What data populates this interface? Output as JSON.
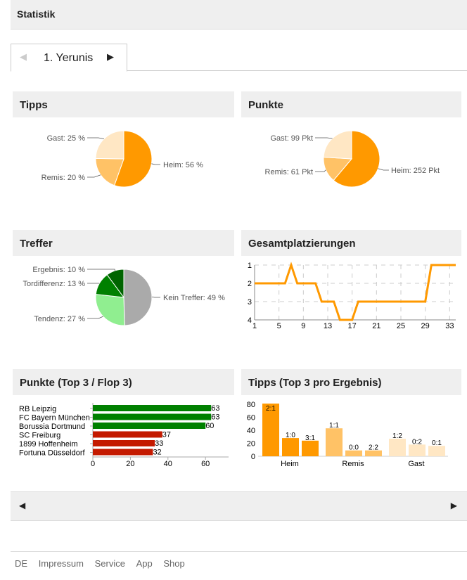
{
  "header": {
    "title": "Statistik"
  },
  "tab": {
    "prev_icon": "◀",
    "label": "1. Yerunis",
    "next_icon": "▶"
  },
  "panels": {
    "tipps": "Tipps",
    "punkte": "Punkte",
    "treffer": "Treffer",
    "platz": "Gesamtplatzierungen",
    "topflop": "Punkte (Top 3 / Flop 3)",
    "tippsTop": "Tipps (Top 3 pro Ergebnis)"
  },
  "colors": {
    "heim": "#ff9900",
    "remis": "#ffc266",
    "gast": "#ffe7c4",
    "kein": "#aaaaaa",
    "tendenz": "#90ee90",
    "tordiff": "#008000",
    "ergebnis": "#006400",
    "green": "#008000",
    "red": "#c41a00"
  },
  "chart_data": [
    {
      "type": "pie",
      "title": "Tipps",
      "slices": [
        {
          "label": "Heim: 56 %",
          "value": 56
        },
        {
          "label": "Remis: 20 %",
          "value": 20
        },
        {
          "label": "Gast: 25 %",
          "value": 25
        }
      ]
    },
    {
      "type": "pie",
      "title": "Punkte",
      "slices": [
        {
          "label": "Heim: 252 Pkt",
          "value": 252
        },
        {
          "label": "Remis: 61 Pkt",
          "value": 61
        },
        {
          "label": "Gast: 99 Pkt",
          "value": 99
        }
      ]
    },
    {
      "type": "pie",
      "title": "Treffer",
      "slices": [
        {
          "label": "Kein Treffer: 49 %",
          "value": 49
        },
        {
          "label": "Tendenz: 27 %",
          "value": 27
        },
        {
          "label": "Tordifferenz: 13 %",
          "value": 13
        },
        {
          "label": "Ergebnis: 10 %",
          "value": 10
        }
      ]
    },
    {
      "type": "line",
      "title": "Gesamtplatzierungen",
      "x": [
        1,
        2,
        3,
        4,
        5,
        6,
        7,
        8,
        9,
        10,
        11,
        12,
        13,
        14,
        15,
        16,
        17,
        18,
        19,
        20,
        21,
        22,
        23,
        24,
        25,
        26,
        27,
        28,
        29,
        30,
        31,
        32,
        33,
        34
      ],
      "y": [
        2,
        2,
        2,
        2,
        2,
        2,
        1,
        2,
        2,
        2,
        2,
        3,
        3,
        3,
        4,
        4,
        4,
        3,
        3,
        3,
        3,
        3,
        3,
        3,
        3,
        3,
        3,
        3,
        3,
        1,
        1,
        1,
        1,
        1
      ],
      "xticks": [
        "1",
        "5",
        "9",
        "13",
        "17",
        "21",
        "25",
        "29",
        "33"
      ],
      "yticks": [
        "1",
        "2",
        "3",
        "4"
      ],
      "ylim": [
        1,
        4
      ]
    },
    {
      "type": "bar",
      "orientation": "horizontal",
      "title": "Punkte (Top 3 / Flop 3)",
      "categories": [
        "RB Leipzig",
        "FC Bayern München",
        "Borussia Dortmund",
        "SC Freiburg",
        "1899 Hoffenheim",
        "Fortuna Düsseldorf"
      ],
      "values": [
        63,
        63,
        60,
        37,
        33,
        32
      ],
      "xticks": [
        "0",
        "20",
        "40",
        "60"
      ]
    },
    {
      "type": "bar",
      "title": "Tipps (Top 3 pro Ergebnis)",
      "groups": [
        "Heim",
        "Remis",
        "Gast"
      ],
      "bars": [
        {
          "label": "2:1",
          "value": 81,
          "group": 0
        },
        {
          "label": "1:0",
          "value": 28,
          "group": 0
        },
        {
          "label": "3:1",
          "value": 24,
          "group": 0
        },
        {
          "label": "1:1",
          "value": 43,
          "group": 1
        },
        {
          "label": "0:0",
          "value": 9,
          "group": 1
        },
        {
          "label": "2:2",
          "value": 9,
          "group": 1
        },
        {
          "label": "1:2",
          "value": 27,
          "group": 2
        },
        {
          "label": "0:2",
          "value": 18,
          "group": 2
        },
        {
          "label": "0:1",
          "value": 16,
          "group": 2
        }
      ],
      "yticks": [
        "0",
        "20",
        "40",
        "60",
        "80"
      ],
      "ylim": [
        0,
        80
      ]
    }
  ],
  "nav": {
    "prev_icon": "◀",
    "next_icon": "▶"
  },
  "footer": [
    "DE",
    "Impressum",
    "Service",
    "App",
    "Shop"
  ]
}
